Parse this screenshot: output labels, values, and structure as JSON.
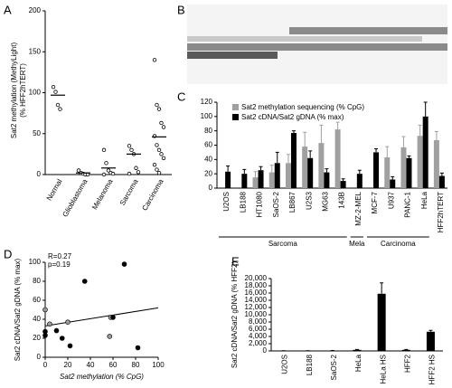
{
  "chart_data": [
    {
      "type": "strip",
      "panel": "A",
      "ylabel": [
        "Sat2 methylation (MethyLight)",
        "(% HFF2hTERT)"
      ],
      "categories": [
        "Normal",
        "Glioblastoma",
        "Melanoma",
        "Sarcoma",
        "Carcinoma"
      ],
      "points": [
        [
          107,
          101,
          85,
          80
        ],
        [
          5,
          2,
          1,
          0,
          0
        ],
        [
          30,
          14,
          5,
          2,
          1,
          0
        ],
        [
          35,
          30,
          25,
          8,
          3,
          1
        ],
        [
          140,
          85,
          80,
          63,
          58,
          47,
          36,
          30,
          25,
          20,
          12,
          6,
          2
        ]
      ],
      "means": [
        97,
        2,
        8,
        25,
        46
      ],
      "ylim": [
        0,
        200
      ],
      "yticks": [
        0,
        50,
        100,
        150,
        200
      ]
    },
    {
      "type": "image",
      "panel": "B"
    },
    {
      "type": "bar",
      "panel": "C",
      "categories": [
        "U2OS",
        "LB188",
        "HT1080",
        "SaOS-2",
        "LB867",
        "U2S3",
        "MG63",
        "143B",
        "MZ-2-MEL",
        "MCF-7",
        "U937",
        "PANC-1",
        "HeLa",
        "HFF2hTERT"
      ],
      "series": [
        {
          "name": "Sat2 methylation sequencing (% CpG)",
          "color": "#a0a0a0",
          "values": [
            null,
            null,
            15,
            22,
            35,
            58,
            63,
            82,
            null,
            null,
            43,
            57,
            73,
            67
          ],
          "errors": [
            null,
            null,
            8,
            10,
            12,
            20,
            25,
            10,
            null,
            null,
            15,
            15,
            15,
            12
          ]
        },
        {
          "name": "Sat2 cDNA/Sat2 gDNA (% max)",
          "color": "#000000",
          "values": [
            23,
            20,
            25,
            35,
            77,
            42,
            22,
            10,
            20,
            50,
            12,
            42,
            100,
            17
          ],
          "errors": [
            8,
            6,
            5,
            15,
            3,
            10,
            5,
            3,
            5,
            5,
            4,
            3,
            20,
            4
          ]
        }
      ],
      "groups": [
        {
          "label": "Sarcoma",
          "members": [
            "U2OS",
            "143B"
          ]
        },
        {
          "label": "Mela",
          "members": [
            "MZ-2-MEL",
            "MZ-2-MEL"
          ]
        },
        {
          "label": "Carcinoma",
          "members": [
            "MCF-7",
            "HeLa"
          ]
        }
      ],
      "ylim": [
        0,
        120
      ],
      "yticks": [
        0,
        20,
        40,
        60,
        80,
        100,
        120
      ]
    },
    {
      "type": "scatter",
      "panel": "D",
      "annotations": [
        "R=0.27",
        "p=0.19"
      ],
      "xlabel": "Sat2 methylation  (% CpG)",
      "ylabel": "Sat2 cDNA/Sat2 gDNA (% max)",
      "x": [
        0,
        0,
        0,
        4,
        10,
        15,
        20,
        22,
        35,
        58,
        60,
        70,
        57,
        82
      ],
      "y": [
        50,
        23,
        27,
        35,
        28,
        20,
        37,
        12,
        80,
        42,
        42,
        98,
        22,
        10
      ],
      "trendline": {
        "x": [
          0,
          100
        ],
        "y": [
          33,
          52
        ]
      },
      "xlim": [
        0,
        100
      ],
      "xticks": [
        0,
        20,
        40,
        60,
        80,
        100
      ],
      "ylim": [
        0,
        100
      ],
      "yticks": [
        0,
        20,
        40,
        60,
        80,
        100
      ]
    },
    {
      "type": "bar",
      "panel": "E",
      "ylabel": "Sat2 cDNA/Sat2 gDNA (% HFF2)",
      "categories": [
        "U2OS",
        "LB188",
        "SaOS-2",
        "HeLa",
        "HeLa HS",
        "HFF2",
        "HFF2 HS"
      ],
      "series": [
        {
          "color": "#000000",
          "values": [
            50,
            50,
            100,
            300,
            15800,
            300,
            5300
          ],
          "errors": [
            20,
            20,
            40,
            100,
            3000,
            100,
            400
          ]
        }
      ],
      "ylim": [
        0,
        20000
      ],
      "yticks": [
        0,
        {
          "value": 2000,
          "label": "2,000"
        },
        {
          "value": 4000,
          "label": "4,000"
        },
        {
          "value": 6000,
          "label": "6,000"
        },
        {
          "value": 8000,
          "label": "8,000"
        },
        {
          "value": 10000,
          "label": "10,000"
        },
        {
          "value": 12000,
          "label": "12,000"
        },
        {
          "value": 14000,
          "label": "14,000"
        },
        {
          "value": 16000,
          "label": "16,000"
        },
        {
          "value": 18000,
          "label": "18,000"
        },
        {
          "value": 20000,
          "label": "20,000"
        }
      ]
    }
  ]
}
